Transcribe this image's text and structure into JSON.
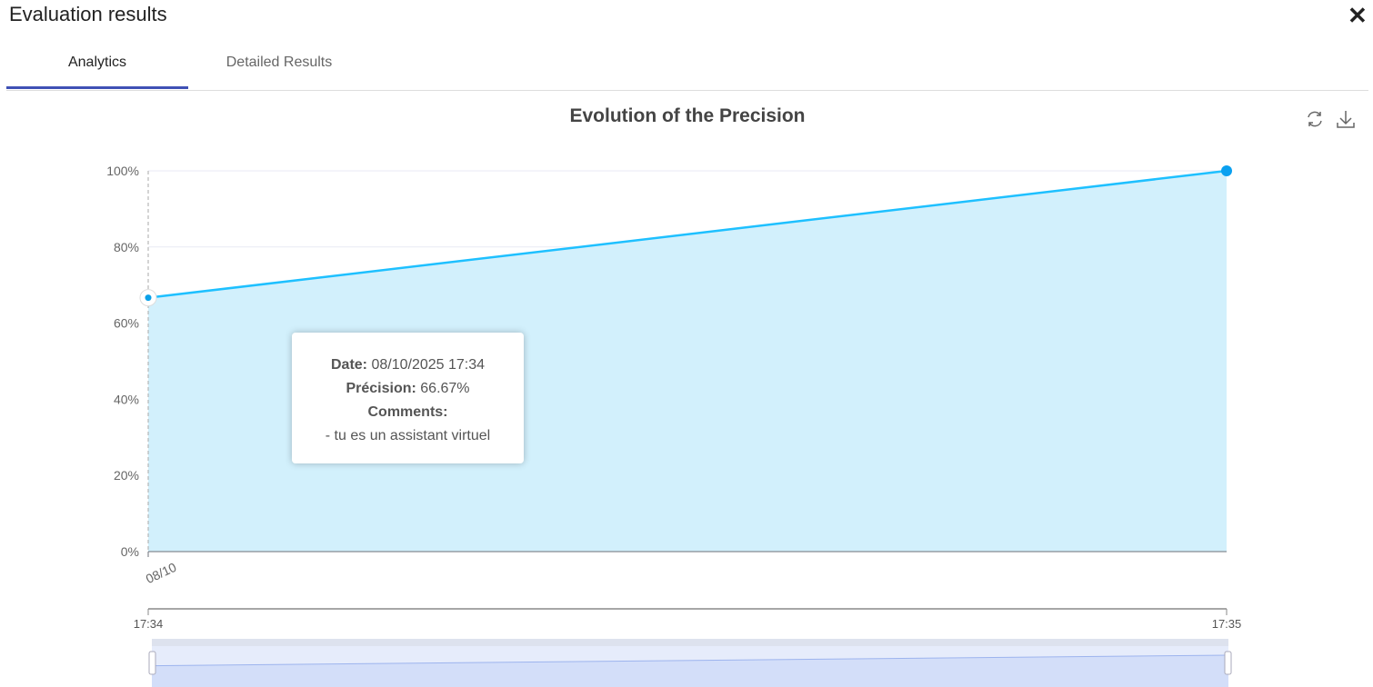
{
  "dialog": {
    "title": "Evaluation results",
    "close_icon": "close-icon"
  },
  "tabs": [
    {
      "label": "Analytics",
      "active": true
    },
    {
      "label": "Detailed Results",
      "active": false
    }
  ],
  "toolbox": {
    "restore_icon": "refresh-icon",
    "save_icon": "download-icon"
  },
  "colors": {
    "accent": "#3f51b5",
    "line": "#1ec0ff",
    "area": "#d2f0fc"
  },
  "chart_data": {
    "type": "area",
    "title": "Evolution of the Precision",
    "x": [
      "08/10/2025 17:34",
      "08/10/2025 17:35"
    ],
    "x_tick_labels": [
      "08/10"
    ],
    "values": [
      66.67,
      100
    ],
    "ylim": [
      0,
      100
    ],
    "y_ticks": [
      "0%",
      "20%",
      "40%",
      "60%",
      "80%",
      "100%"
    ],
    "grid": true,
    "datazoom": {
      "start_label": "17:34",
      "end_label": "17:35",
      "range_percent": [
        0,
        100
      ]
    }
  },
  "tooltip": {
    "date_label": "Date:",
    "date_value": "08/10/2025 17:34",
    "precision_label": "Précision:",
    "precision_value": "66.67%",
    "comments_label": "Comments:",
    "comment": "- tu es un assistant virtuel"
  }
}
